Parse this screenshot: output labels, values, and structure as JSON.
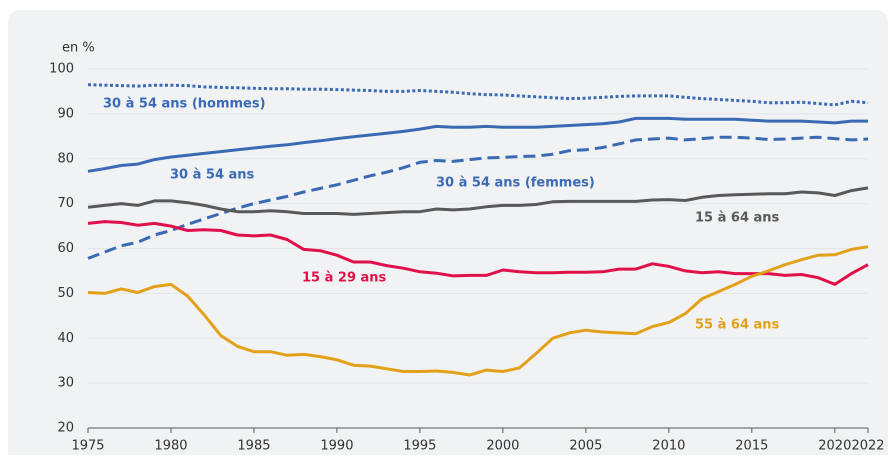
{
  "chart_data": {
    "type": "line",
    "y_axis_label": "en %",
    "x": [
      1975,
      1976,
      1977,
      1978,
      1979,
      1980,
      1981,
      1982,
      1983,
      1984,
      1985,
      1986,
      1987,
      1988,
      1989,
      1990,
      1991,
      1992,
      1993,
      1994,
      1995,
      1996,
      1997,
      1998,
      1999,
      2000,
      2001,
      2002,
      2003,
      2004,
      2005,
      2006,
      2007,
      2008,
      2009,
      2010,
      2011,
      2012,
      2013,
      2014,
      2015,
      2016,
      2017,
      2018,
      2019,
      2020,
      2021,
      2022
    ],
    "xlim": [
      1975,
      2022
    ],
    "xticks": [
      1975,
      1980,
      1985,
      1990,
      1995,
      2000,
      2005,
      2010,
      2015,
      2020,
      2022
    ],
    "ylim": [
      20,
      100
    ],
    "yticks": [
      20,
      30,
      40,
      50,
      60,
      70,
      80,
      90,
      100
    ],
    "grid": true,
    "series": [
      {
        "name": "30 à 54 ans (hommes)",
        "color": "#3a6ab4",
        "dash": "dotted",
        "values": [
          96.5,
          96.4,
          96.3,
          96.2,
          96.4,
          96.4,
          96.3,
          96.0,
          95.9,
          95.8,
          95.7,
          95.6,
          95.6,
          95.5,
          95.5,
          95.4,
          95.3,
          95.2,
          95.0,
          95.0,
          95.2,
          95.0,
          94.8,
          94.5,
          94.3,
          94.2,
          94.0,
          93.8,
          93.6,
          93.4,
          93.5,
          93.7,
          93.9,
          94.0,
          94.0,
          94.0,
          93.7,
          93.4,
          93.2,
          93.0,
          92.8,
          92.5,
          92.5,
          92.6,
          92.3,
          92.0,
          92.8,
          92.5
        ]
      },
      {
        "name": "30 à 54 ans",
        "color": "#3a6ab4",
        "dash": "solid",
        "values": [
          77.2,
          77.8,
          78.5,
          78.8,
          79.8,
          80.4,
          80.8,
          81.2,
          81.6,
          82.0,
          82.4,
          82.8,
          83.1,
          83.6,
          84.0,
          84.5,
          84.9,
          85.3,
          85.7,
          86.1,
          86.6,
          87.2,
          87.0,
          87.0,
          87.2,
          87.0,
          87.0,
          87.0,
          87.2,
          87.4,
          87.6,
          87.8,
          88.2,
          89.0,
          89.0,
          89.0,
          88.8,
          88.8,
          88.8,
          88.8,
          88.6,
          88.4,
          88.4,
          88.4,
          88.2,
          88.0,
          88.4,
          88.4
        ]
      },
      {
        "name": "30 à 54 ans (femmes)",
        "color": "#3a6ab4",
        "dash": "dashed",
        "values": [
          57.8,
          59.2,
          60.6,
          61.4,
          63.0,
          64.0,
          65.4,
          66.6,
          67.8,
          69.0,
          70.0,
          70.8,
          71.6,
          72.6,
          73.4,
          74.2,
          75.2,
          76.2,
          77.0,
          78.0,
          79.2,
          79.6,
          79.4,
          79.8,
          80.2,
          80.3,
          80.5,
          80.6,
          81.0,
          81.8,
          82.0,
          82.5,
          83.3,
          84.2,
          84.4,
          84.6,
          84.2,
          84.5,
          84.8,
          84.8,
          84.6,
          84.3,
          84.4,
          84.6,
          84.8,
          84.5,
          84.2,
          84.4
        ]
      },
      {
        "name": "15 à 64 ans",
        "color": "#595959",
        "dash": "solid",
        "values": [
          69.2,
          69.6,
          70.0,
          69.6,
          70.6,
          70.6,
          70.2,
          69.6,
          68.8,
          68.2,
          68.2,
          68.4,
          68.2,
          67.8,
          67.8,
          67.8,
          67.6,
          67.8,
          68.0,
          68.2,
          68.2,
          68.8,
          68.6,
          68.8,
          69.3,
          69.6,
          69.6,
          69.8,
          70.4,
          70.5,
          70.5,
          70.5,
          70.5,
          70.5,
          70.8,
          70.9,
          70.7,
          71.4,
          71.8,
          72.0,
          72.1,
          72.2,
          72.2,
          72.6,
          72.4,
          71.8,
          72.9,
          73.5
        ]
      },
      {
        "name": "15 à 29 ans",
        "color": "#e0114a",
        "dash": "solid",
        "values": [
          65.6,
          66.0,
          65.8,
          65.2,
          65.6,
          65.0,
          64.0,
          64.2,
          64.0,
          63.0,
          62.8,
          63.0,
          62.0,
          59.8,
          59.5,
          58.5,
          57.0,
          57.0,
          56.2,
          55.6,
          54.8,
          54.5,
          53.9,
          54.0,
          54.0,
          55.2,
          54.8,
          54.6,
          54.6,
          54.7,
          54.7,
          54.8,
          55.4,
          55.4,
          56.6,
          56.0,
          55.0,
          54.6,
          54.8,
          54.4,
          54.4,
          54.4,
          54.0,
          54.2,
          53.5,
          52.0,
          54.4,
          56.4
        ]
      },
      {
        "name": "55 à 64 ans",
        "color": "#e3a11a",
        "dash": "solid",
        "values": [
          50.2,
          50.0,
          51.0,
          50.2,
          51.5,
          52.0,
          49.4,
          45.2,
          40.6,
          38.2,
          37.0,
          37.0,
          36.2,
          36.4,
          35.9,
          35.2,
          34.0,
          33.8,
          33.2,
          32.6,
          32.6,
          32.7,
          32.4,
          31.8,
          32.9,
          32.6,
          33.4,
          36.6,
          40.0,
          41.2,
          41.8,
          41.4,
          41.2,
          41.0,
          42.6,
          43.5,
          45.5,
          48.8,
          50.4,
          52.0,
          53.8,
          55.0,
          56.4,
          57.5,
          58.5,
          58.6,
          59.8,
          60.4
        ]
      }
    ]
  }
}
